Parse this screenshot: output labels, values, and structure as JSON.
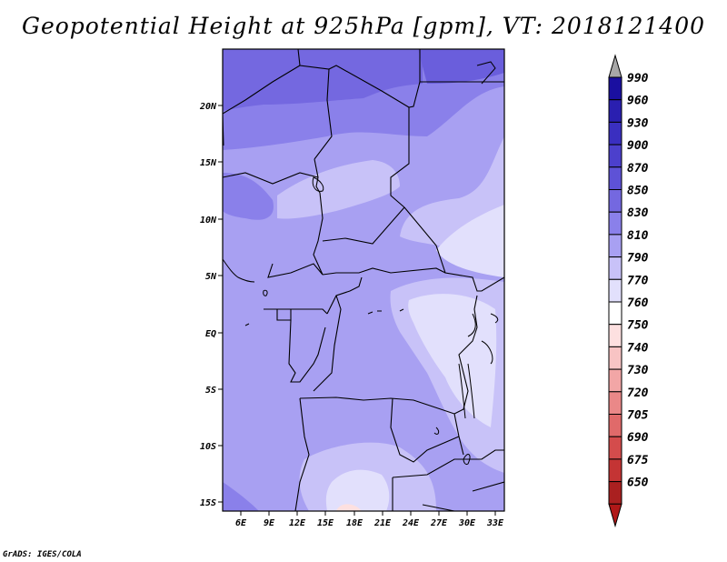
{
  "title": "Geopotential Height at 925hPa [gpm], VT: 2018121400",
  "credit": "GrADS: IGES/COLA",
  "lat_labels": [
    "20N",
    "15N",
    "10N",
    "5N",
    "EQ",
    "5S",
    "10S",
    "15S"
  ],
  "lon_labels": [
    "6E",
    "9E",
    "12E",
    "15E",
    "18E",
    "21E",
    "24E",
    "27E",
    "30E",
    "33E"
  ],
  "colorbar": {
    "levels": [
      "990",
      "960",
      "930",
      "900",
      "870",
      "850",
      "830",
      "810",
      "790",
      "770",
      "760",
      "750",
      "740",
      "730",
      "720",
      "705",
      "690",
      "675",
      "650"
    ],
    "colors": [
      "#1a0fa0",
      "#2a1fb0",
      "#3a2fc0",
      "#4c40cc",
      "#5e52d6",
      "#7468e0",
      "#8a80ea",
      "#a8a0f2",
      "#c8c2f8",
      "#e2e0fc",
      "#ffffff",
      "#fde0e0",
      "#f8c4c4",
      "#f2a6a6",
      "#ea8888",
      "#e06a6a",
      "#d44c4c",
      "#c43434",
      "#aa2020"
    ],
    "top_arrow_color": "#a8a8a8",
    "bottom_arrow_color": "#b01818"
  }
}
